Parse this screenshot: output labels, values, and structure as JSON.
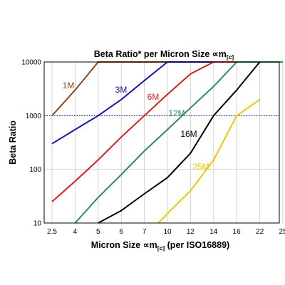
{
  "chart_data": {
    "type": "line",
    "title": "Beta Ratio* per Micron Size ∝m",
    "title_sub": "[c]",
    "xlabel": "Micron Size ∝m",
    "xlabel_sub": "[c]",
    "xlabel_suffix": " (per ISO16889)",
    "ylabel": "Beta Ratio",
    "x_categories": [
      "2.5",
      "4",
      "5",
      "6",
      "7",
      "10",
      "12",
      "14",
      "16",
      "22",
      "25"
    ],
    "y_scale": "log",
    "ylim": [
      10,
      10000
    ],
    "y_ticks": [
      "10",
      "100",
      "1000",
      "10000"
    ],
    "grid": true,
    "reference_line": {
      "y": 1000,
      "style": "dotted",
      "color": "#1a1aa0"
    },
    "series": [
      {
        "name": "1M",
        "color": "#8b4a1e",
        "points": [
          [
            0,
            1000
          ],
          [
            1,
            3000
          ],
          [
            2,
            10000
          ],
          [
            10,
            10000
          ]
        ]
      },
      {
        "name": "3M",
        "color": "#1515b0",
        "points": [
          [
            0,
            300
          ],
          [
            1,
            550
          ],
          [
            2,
            1000
          ],
          [
            3,
            2000
          ],
          [
            4,
            4500
          ],
          [
            5,
            10000
          ],
          [
            10,
            10000
          ]
        ]
      },
      {
        "name": "6M",
        "color": "#d81e1e",
        "points": [
          [
            0,
            25
          ],
          [
            1,
            60
          ],
          [
            2,
            150
          ],
          [
            3,
            400
          ],
          [
            4,
            1000
          ],
          [
            5,
            2500
          ],
          [
            6,
            6000
          ],
          [
            7,
            10000
          ],
          [
            10,
            10000
          ]
        ]
      },
      {
        "name": "12M",
        "color": "#2e8b57",
        "points": [
          [
            1,
            10
          ],
          [
            2,
            30
          ],
          [
            3,
            80
          ],
          [
            4,
            220
          ],
          [
            5,
            550
          ],
          [
            6,
            1400
          ],
          [
            7,
            3500
          ],
          [
            8,
            10000
          ],
          [
            10,
            10000
          ]
        ]
      },
      {
        "name": "16M",
        "color": "#000000",
        "points": [
          [
            2,
            10
          ],
          [
            3,
            17
          ],
          [
            4,
            35
          ],
          [
            5,
            70
          ],
          [
            6,
            200
          ],
          [
            7,
            1000
          ],
          [
            8,
            3000
          ],
          [
            9,
            10000
          ]
        ]
      },
      {
        "name": "25M",
        "color": "#f0c800",
        "points": [
          [
            4.6,
            10
          ],
          [
            5,
            15
          ],
          [
            6,
            40
          ],
          [
            7,
            150
          ],
          [
            8,
            1000
          ],
          [
            9,
            2000
          ]
        ]
      }
    ]
  }
}
